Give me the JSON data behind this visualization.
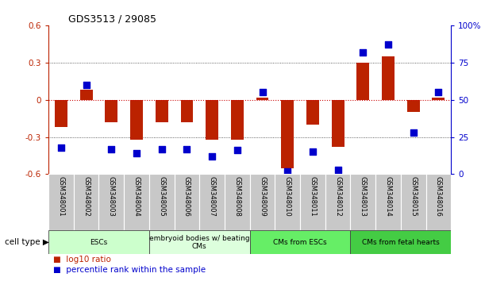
{
  "title": "GDS3513 / 29085",
  "samples": [
    "GSM348001",
    "GSM348002",
    "GSM348003",
    "GSM348004",
    "GSM348005",
    "GSM348006",
    "GSM348007",
    "GSM348008",
    "GSM348009",
    "GSM348010",
    "GSM348011",
    "GSM348012",
    "GSM348013",
    "GSM348014",
    "GSM348015",
    "GSM348016"
  ],
  "log10_ratio": [
    -0.22,
    0.08,
    -0.18,
    -0.32,
    -0.18,
    -0.18,
    -0.32,
    -0.32,
    0.02,
    -0.55,
    -0.2,
    -0.38,
    0.3,
    0.35,
    -0.1,
    0.02
  ],
  "percentile_rank": [
    18,
    60,
    17,
    14,
    17,
    17,
    12,
    16,
    55,
    2,
    15,
    3,
    82,
    87,
    28,
    55
  ],
  "cell_type_groups": [
    {
      "label": "ESCs",
      "start": 0,
      "end": 3,
      "color": "#ccffcc"
    },
    {
      "label": "embryoid bodies w/ beating\nCMs",
      "start": 4,
      "end": 7,
      "color": "#ddffdd"
    },
    {
      "label": "CMs from ESCs",
      "start": 8,
      "end": 11,
      "color": "#66ee66"
    },
    {
      "label": "CMs from fetal hearts",
      "start": 12,
      "end": 15,
      "color": "#44cc44"
    }
  ],
  "ylim_left": [
    -0.6,
    0.6
  ],
  "ylim_right": [
    0,
    100
  ],
  "yticks_left": [
    -0.6,
    -0.3,
    0.0,
    0.3,
    0.6
  ],
  "ytick_labels_left": [
    "-0.6",
    "-0.3",
    "0",
    "0.3",
    "0.6"
  ],
  "yticks_right": [
    0,
    25,
    50,
    75,
    100
  ],
  "ytick_labels_right": [
    "0",
    "25",
    "50",
    "75",
    "100%"
  ],
  "bar_color": "#bb2200",
  "dot_color": "#0000cc",
  "zero_line_color": "#cc0000",
  "grid_color": "#333333",
  "legend_red": "log10 ratio",
  "legend_blue": "percentile rank within the sample",
  "cell_type_label": "cell type"
}
